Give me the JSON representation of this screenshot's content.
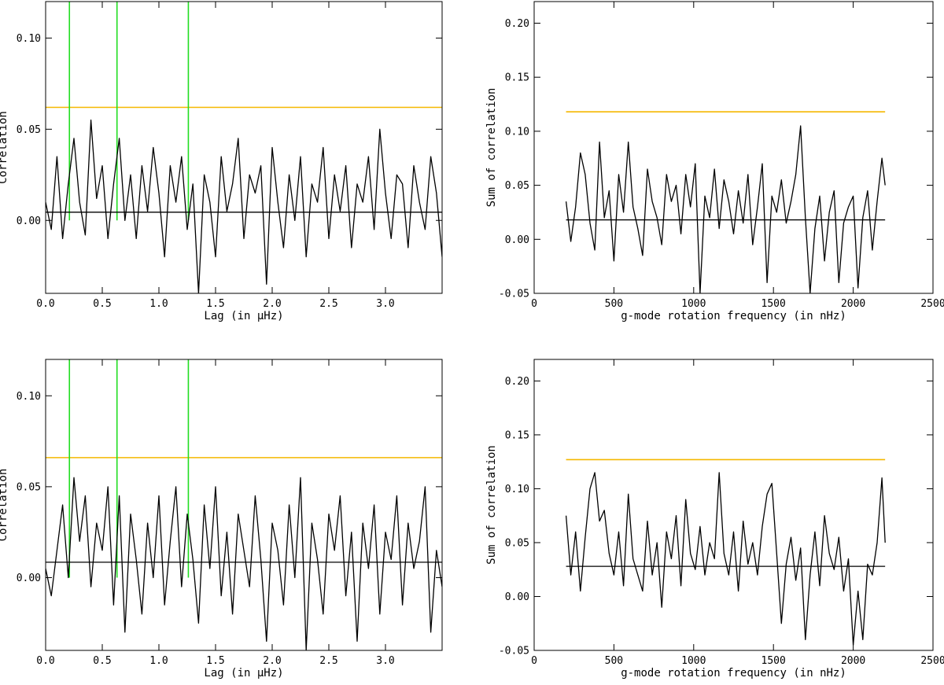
{
  "colors": {
    "signal": "#000000",
    "threshold": "#f5b800",
    "marker": "#22dd22"
  },
  "chart_data": [
    {
      "id": "top-left",
      "type": "line",
      "xlabel": "Lag (in μHz)",
      "ylabel": "Correlation",
      "xlim": [
        0,
        3.5
      ],
      "ylim": [
        -0.04,
        0.12
      ],
      "xticks": [
        0,
        0.5,
        1,
        1.5,
        2,
        2.5,
        3
      ],
      "xticklabels": [
        "0.0",
        "0.5",
        "1.0",
        "1.5",
        "2.0",
        "2.5",
        "3.0"
      ],
      "yticks": [
        0,
        0.05,
        0.1
      ],
      "yticklabels": [
        "0.00",
        "0.05",
        "0.10"
      ],
      "threshold": 0.062,
      "baseline": 0.0045,
      "markers": [
        0.21,
        0.63,
        1.26
      ],
      "x": [
        0.0,
        0.05,
        0.1,
        0.15,
        0.2,
        0.25,
        0.3,
        0.35,
        0.4,
        0.45,
        0.5,
        0.55,
        0.6,
        0.65,
        0.7,
        0.75,
        0.8,
        0.85,
        0.9,
        0.95,
        1.0,
        1.05,
        1.1,
        1.15,
        1.2,
        1.25,
        1.3,
        1.35,
        1.4,
        1.45,
        1.5,
        1.55,
        1.6,
        1.65,
        1.7,
        1.75,
        1.8,
        1.85,
        1.9,
        1.95,
        2.0,
        2.05,
        2.1,
        2.15,
        2.2,
        2.25,
        2.3,
        2.35,
        2.4,
        2.45,
        2.5,
        2.55,
        2.6,
        2.65,
        2.7,
        2.75,
        2.8,
        2.85,
        2.9,
        2.95,
        3.0,
        3.05,
        3.1,
        3.15,
        3.2,
        3.25,
        3.3,
        3.35,
        3.4,
        3.45,
        3.5
      ],
      "values": [
        0.01,
        -0.005,
        0.035,
        -0.01,
        0.02,
        0.045,
        0.01,
        -0.008,
        0.055,
        0.012,
        0.03,
        -0.01,
        0.02,
        0.045,
        0.0,
        0.025,
        -0.01,
        0.03,
        0.005,
        0.04,
        0.015,
        -0.02,
        0.03,
        0.01,
        0.035,
        -0.005,
        0.02,
        -0.04,
        0.025,
        0.01,
        -0.02,
        0.035,
        0.005,
        0.02,
        0.045,
        -0.01,
        0.025,
        0.015,
        0.03,
        -0.035,
        0.04,
        0.01,
        -0.015,
        0.025,
        0.0,
        0.035,
        -0.02,
        0.02,
        0.01,
        0.04,
        -0.01,
        0.025,
        0.005,
        0.03,
        -0.015,
        0.02,
        0.01,
        0.035,
        -0.005,
        0.05,
        0.015,
        -0.01,
        0.025,
        0.02,
        -0.015,
        0.03,
        0.01,
        -0.005,
        0.035,
        0.015,
        -0.02
      ]
    },
    {
      "id": "top-right",
      "type": "line",
      "xlabel": "g-mode rotation frequency (in nHz)",
      "ylabel": "Sum of correlation",
      "xlim": [
        0,
        2500
      ],
      "ylim": [
        -0.05,
        0.22
      ],
      "xticks": [
        0,
        500,
        1000,
        1500,
        2000,
        2500
      ],
      "xticklabels": [
        "0",
        "500",
        "1000",
        "1500",
        "2000",
        "2500"
      ],
      "yticks": [
        -0.05,
        0,
        0.05,
        0.1,
        0.15,
        0.2
      ],
      "yticklabels": [
        "-0.05",
        "0.00",
        "0.05",
        "0.10",
        "0.15",
        "0.20"
      ],
      "threshold": 0.118,
      "threshold_x": [
        200,
        2200
      ],
      "baseline": 0.018,
      "baseline_x": [
        200,
        2200
      ],
      "x": [
        200,
        230,
        260,
        290,
        320,
        350,
        380,
        410,
        440,
        470,
        500,
        530,
        560,
        590,
        620,
        650,
        680,
        710,
        740,
        770,
        800,
        830,
        860,
        890,
        920,
        950,
        980,
        1010,
        1040,
        1070,
        1100,
        1130,
        1160,
        1190,
        1220,
        1250,
        1280,
        1310,
        1340,
        1370,
        1400,
        1430,
        1460,
        1490,
        1520,
        1550,
        1580,
        1610,
        1640,
        1670,
        1700,
        1730,
        1760,
        1790,
        1820,
        1850,
        1880,
        1910,
        1940,
        1970,
        2000,
        2030,
        2060,
        2090,
        2120,
        2150,
        2180,
        2200
      ],
      "values": [
        0.035,
        -0.002,
        0.03,
        0.08,
        0.06,
        0.015,
        -0.01,
        0.09,
        0.02,
        0.045,
        -0.02,
        0.06,
        0.025,
        0.09,
        0.03,
        0.01,
        -0.015,
        0.065,
        0.035,
        0.02,
        -0.005,
        0.06,
        0.035,
        0.05,
        0.005,
        0.06,
        0.03,
        0.07,
        -0.05,
        0.04,
        0.02,
        0.065,
        0.01,
        0.055,
        0.035,
        0.005,
        0.045,
        0.015,
        0.06,
        -0.005,
        0.03,
        0.07,
        -0.04,
        0.04,
        0.025,
        0.055,
        0.015,
        0.035,
        0.06,
        0.105,
        0.02,
        -0.05,
        0.01,
        0.04,
        -0.02,
        0.025,
        0.045,
        -0.04,
        0.015,
        0.03,
        0.04,
        -0.045,
        0.02,
        0.045,
        -0.01,
        0.035,
        0.075,
        0.05
      ]
    },
    {
      "id": "bottom-left",
      "type": "line",
      "xlabel": "Lag (in μHz)",
      "ylabel": "Correlation",
      "xlim": [
        0,
        3.5
      ],
      "ylim": [
        -0.04,
        0.12
      ],
      "xticks": [
        0,
        0.5,
        1,
        1.5,
        2,
        2.5,
        3
      ],
      "xticklabels": [
        "0.0",
        "0.5",
        "1.0",
        "1.5",
        "2.0",
        "2.5",
        "3.0"
      ],
      "yticks": [
        0,
        0.05,
        0.1
      ],
      "yticklabels": [
        "0.00",
        "0.05",
        "0.10"
      ],
      "threshold": 0.066,
      "baseline": 0.0085,
      "markers": [
        0.21,
        0.63,
        1.26
      ],
      "x": [
        0.0,
        0.05,
        0.1,
        0.15,
        0.2,
        0.25,
        0.3,
        0.35,
        0.4,
        0.45,
        0.5,
        0.55,
        0.6,
        0.65,
        0.7,
        0.75,
        0.8,
        0.85,
        0.9,
        0.95,
        1.0,
        1.05,
        1.1,
        1.15,
        1.2,
        1.25,
        1.3,
        1.35,
        1.4,
        1.45,
        1.5,
        1.55,
        1.6,
        1.65,
        1.7,
        1.75,
        1.8,
        1.85,
        1.9,
        1.95,
        2.0,
        2.05,
        2.1,
        2.15,
        2.2,
        2.25,
        2.3,
        2.35,
        2.4,
        2.45,
        2.5,
        2.55,
        2.6,
        2.65,
        2.7,
        2.75,
        2.8,
        2.85,
        2.9,
        2.95,
        3.0,
        3.05,
        3.1,
        3.15,
        3.2,
        3.25,
        3.3,
        3.35,
        3.4,
        3.45,
        3.5
      ],
      "values": [
        0.005,
        -0.01,
        0.015,
        0.04,
        0.0,
        0.055,
        0.02,
        0.045,
        -0.005,
        0.03,
        0.015,
        0.05,
        -0.015,
        0.045,
        -0.03,
        0.035,
        0.01,
        -0.02,
        0.03,
        0.0,
        0.045,
        -0.015,
        0.02,
        0.05,
        -0.005,
        0.035,
        0.01,
        -0.025,
        0.04,
        0.005,
        0.05,
        -0.01,
        0.025,
        -0.02,
        0.035,
        0.015,
        -0.005,
        0.045,
        0.01,
        -0.035,
        0.03,
        0.015,
        -0.015,
        0.04,
        0.0,
        0.055,
        -0.04,
        0.03,
        0.01,
        -0.02,
        0.035,
        0.015,
        0.045,
        -0.01,
        0.025,
        -0.035,
        0.03,
        0.005,
        0.04,
        -0.02,
        0.025,
        0.01,
        0.045,
        -0.015,
        0.03,
        0.005,
        0.02,
        0.05,
        -0.03,
        0.015,
        -0.005
      ]
    },
    {
      "id": "bottom-right",
      "type": "line",
      "xlabel": "g-mode rotation frequency (in nHz)",
      "ylabel": "Sum of correlation",
      "xlim": [
        0,
        2500
      ],
      "ylim": [
        -0.05,
        0.22
      ],
      "xticks": [
        0,
        500,
        1000,
        1500,
        2000,
        2500
      ],
      "xticklabels": [
        "0",
        "500",
        "1000",
        "1500",
        "2000",
        "2500"
      ],
      "yticks": [
        -0.05,
        0,
        0.05,
        0.1,
        0.15,
        0.2
      ],
      "yticklabels": [
        "-0.05",
        "0.00",
        "0.05",
        "0.10",
        "0.15",
        "0.20"
      ],
      "threshold": 0.127,
      "threshold_x": [
        200,
        2200
      ],
      "baseline": 0.028,
      "baseline_x": [
        200,
        2200
      ],
      "x": [
        200,
        230,
        260,
        290,
        320,
        350,
        380,
        410,
        440,
        470,
        500,
        530,
        560,
        590,
        620,
        650,
        680,
        710,
        740,
        770,
        800,
        830,
        860,
        890,
        920,
        950,
        980,
        1010,
        1040,
        1070,
        1100,
        1130,
        1160,
        1190,
        1220,
        1250,
        1280,
        1310,
        1340,
        1370,
        1400,
        1430,
        1460,
        1490,
        1520,
        1550,
        1580,
        1610,
        1640,
        1670,
        1700,
        1730,
        1760,
        1790,
        1820,
        1850,
        1880,
        1910,
        1940,
        1970,
        2000,
        2030,
        2060,
        2090,
        2120,
        2150,
        2180,
        2200
      ],
      "values": [
        0.075,
        0.02,
        0.06,
        0.005,
        0.055,
        0.1,
        0.115,
        0.07,
        0.08,
        0.04,
        0.02,
        0.06,
        0.01,
        0.095,
        0.035,
        0.02,
        0.005,
        0.07,
        0.02,
        0.05,
        -0.01,
        0.06,
        0.035,
        0.075,
        0.01,
        0.09,
        0.04,
        0.025,
        0.065,
        0.02,
        0.05,
        0.035,
        0.115,
        0.04,
        0.02,
        0.06,
        0.005,
        0.07,
        0.03,
        0.05,
        0.02,
        0.065,
        0.095,
        0.105,
        0.04,
        -0.025,
        0.03,
        0.055,
        0.015,
        0.045,
        -0.04,
        0.02,
        0.06,
        0.01,
        0.075,
        0.04,
        0.025,
        0.055,
        0.005,
        0.035,
        -0.045,
        0.005,
        -0.04,
        0.03,
        0.02,
        0.05,
        0.11,
        0.05
      ]
    }
  ]
}
